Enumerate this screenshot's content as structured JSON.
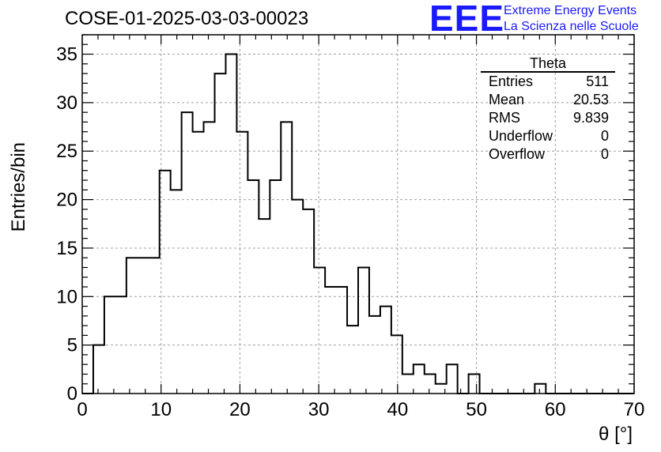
{
  "header": {
    "run_title": "COSE-01-2025-03-03-00023",
    "logo": "EEE",
    "logo_line1": "Extreme Energy Events",
    "logo_line2": "La Scienza nelle Scuole"
  },
  "stats_box": {
    "name": "Theta",
    "rows": [
      {
        "label": "Entries",
        "value": "511"
      },
      {
        "label": "Mean",
        "value": "20.53"
      },
      {
        "label": "RMS",
        "value": "9.839"
      },
      {
        "label": "Underflow",
        "value": "0"
      },
      {
        "label": "Overflow",
        "value": "0"
      }
    ]
  },
  "colors": {
    "line": "#000000",
    "grid": "#a0a0a0",
    "logo": "#1a1aff"
  },
  "chart_data": {
    "type": "histogram",
    "title": "COSE-01-2025-03-03-00023",
    "xlabel": "θ [°]",
    "ylabel": "Entries/bin",
    "xlim": [
      0,
      70
    ],
    "ylim": [
      0,
      37
    ],
    "x_ticks": [
      0,
      10,
      20,
      30,
      40,
      50,
      60,
      70
    ],
    "y_ticks": [
      0,
      5,
      10,
      15,
      20,
      25,
      30,
      35
    ],
    "grid": true,
    "bin_width": 1.4,
    "bin_start": 0,
    "values": [
      0,
      5,
      10,
      10,
      14,
      14,
      14,
      23,
      21,
      29,
      27,
      28,
      33,
      35,
      27,
      22,
      18,
      22,
      28,
      20,
      19,
      13,
      11,
      11,
      7,
      13,
      8,
      9,
      6,
      2,
      3,
      2,
      1,
      3,
      0,
      2,
      0,
      0,
      0,
      0,
      0,
      1,
      0,
      0,
      0,
      0,
      0,
      0,
      0,
      0
    ]
  }
}
